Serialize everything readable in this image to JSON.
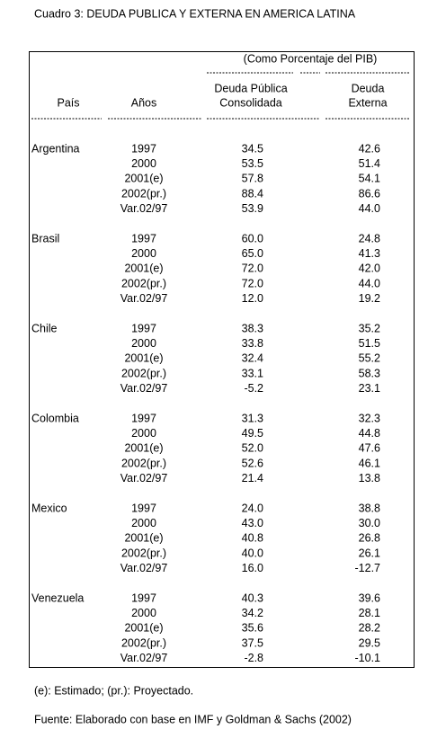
{
  "header": {
    "title": "Cuadro 3:  DEUDA  PUBLICA Y  EXTERNA EN  AMERICA  LATINA"
  },
  "table": {
    "unit_note": "(Como Porcentaje del PIB)",
    "columns": [
      "País",
      "Años",
      "Deuda Pública",
      "Consolidada",
      "Deuda",
      "Externa"
    ],
    "groups": [
      {
        "country": "Argentina",
        "rows": [
          [
            "1997",
            "34.5",
            "42.6"
          ],
          [
            "2000",
            "53.5",
            "51.4"
          ],
          [
            "2001(e)",
            "57.8",
            "54.1"
          ],
          [
            "2002(pr.)",
            "88.4",
            "86.6"
          ],
          [
            "Var.02/97",
            "53.9",
            "44.0"
          ]
        ]
      },
      {
        "country": "Brasil",
        "rows": [
          [
            "1997",
            "60.0",
            "24.8"
          ],
          [
            "2000",
            "65.0",
            "41.3"
          ],
          [
            "2001(e)",
            "72.0",
            "42.0"
          ],
          [
            "2002(pr.)",
            "72.0",
            "44.0"
          ],
          [
            "Var.02/97",
            "12.0",
            "19.2"
          ]
        ]
      },
      {
        "country": "Chile",
        "rows": [
          [
            "1997",
            "38.3",
            "35.2"
          ],
          [
            "2000",
            "33.8",
            "51.5"
          ],
          [
            "2001(e)",
            "32.4",
            "55.2"
          ],
          [
            "2002(pr.)",
            "33.1",
            "58.3"
          ],
          [
            "Var.02/97",
            "-5.2",
            "23.1"
          ]
        ]
      },
      {
        "country": "Colombia",
        "rows": [
          [
            "1997",
            "31.3",
            "32.3"
          ],
          [
            "2000",
            "49.5",
            "44.8"
          ],
          [
            "2001(e)",
            "52.0",
            "47.6"
          ],
          [
            "2002(pr.)",
            "52.6",
            "46.1"
          ],
          [
            "Var.02/97",
            "21.4",
            "13.8"
          ]
        ]
      },
      {
        "country": "Mexico",
        "rows": [
          [
            "1997",
            "24.0",
            "38.8"
          ],
          [
            "2000",
            "43.0",
            "30.0"
          ],
          [
            "2001(e)",
            "40.8",
            "26.8"
          ],
          [
            "2002(pr.)",
            "40.0",
            "26.1"
          ],
          [
            "Var.02/97",
            "16.0",
            "-12.7"
          ]
        ]
      },
      {
        "country": "Venezuela",
        "rows": [
          [
            "1997",
            "40.3",
            "39.6"
          ],
          [
            "2000",
            "34.2",
            "28.1"
          ],
          [
            "2001(e)",
            "35.6",
            "28.2"
          ],
          [
            "2002(pr.)",
            "37.5",
            "29.5"
          ],
          [
            "Var.02/97",
            "-2.8",
            "-10.1"
          ]
        ]
      }
    ]
  },
  "footer": {
    "note": "(e):  Estimado; (pr.):  Proyectado.",
    "source": "Fuente:  Elaborado con base en IMF y Goldman & Sachs (2002)"
  }
}
